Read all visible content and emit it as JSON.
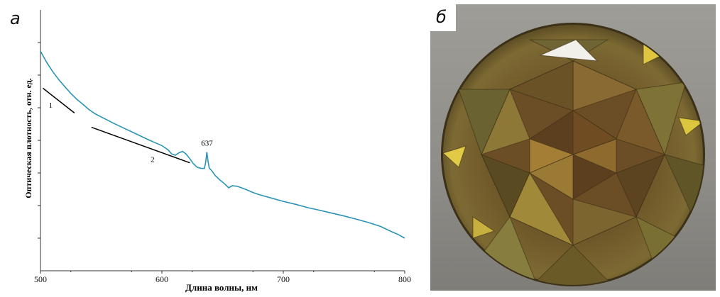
{
  "panel_a": {
    "letter": "а"
  },
  "panel_b": {
    "letter": "б"
  },
  "chart_data": {
    "type": "line",
    "xlabel": "Длина волны, нм",
    "ylabel": "Оптическая плотность, отн. ед.",
    "xlim": [
      500,
      800
    ],
    "x_ticks": [
      500,
      600,
      700,
      800
    ],
    "y_ticks_count": 7,
    "grid": false,
    "series": [
      {
        "color": "#2a93b5",
        "x": [
          500,
          505,
          510,
          515,
          520,
          525,
          530,
          535,
          540,
          545,
          550,
          555,
          560,
          565,
          570,
          575,
          580,
          585,
          590,
          595,
          600,
          605,
          608,
          611,
          614,
          617,
          620,
          623,
          626,
          629,
          632,
          635,
          636,
          637,
          638,
          639,
          641,
          644,
          648,
          652,
          655,
          658,
          662,
          666,
          670,
          675,
          680,
          690,
          700,
          710,
          720,
          730,
          740,
          750,
          760,
          770,
          780,
          790,
          795,
          800
        ],
        "y": [
          0.842,
          0.8,
          0.764,
          0.733,
          0.706,
          0.68,
          0.657,
          0.638,
          0.618,
          0.602,
          0.59,
          0.578,
          0.566,
          0.555,
          0.544,
          0.533,
          0.522,
          0.511,
          0.5,
          0.49,
          0.48,
          0.464,
          0.448,
          0.443,
          0.452,
          0.458,
          0.447,
          0.43,
          0.41,
          0.397,
          0.393,
          0.392,
          0.415,
          0.455,
          0.42,
          0.394,
          0.384,
          0.365,
          0.347,
          0.332,
          0.318,
          0.326,
          0.324,
          0.317,
          0.31,
          0.3,
          0.292,
          0.279,
          0.266,
          0.255,
          0.242,
          0.232,
          0.221,
          0.21,
          0.198,
          0.185,
          0.17,
          0.148,
          0.138,
          0.125
        ]
      }
    ],
    "annotations": [
      {
        "text": "637",
        "x": 637
      },
      {
        "text": "1"
      },
      {
        "text": "2"
      }
    ],
    "tangent_lines": [
      {
        "label": "1",
        "x": [
          502,
          528
        ],
        "y": [
          0.7,
          0.605
        ]
      },
      {
        "label": "2",
        "x": [
          542,
          623
        ],
        "y": [
          0.55,
          0.414
        ]
      }
    ]
  },
  "photo": {
    "subject": "gem-photo",
    "background_color": "#95938d",
    "stone_color": "#6a5528"
  }
}
